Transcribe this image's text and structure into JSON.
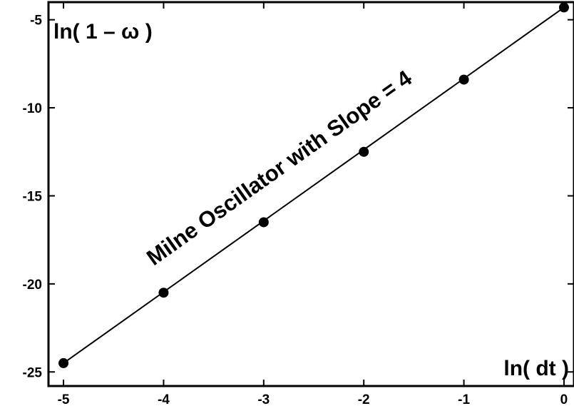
{
  "chart_data": {
    "type": "line",
    "title": "",
    "xlabel": "ln( dt )",
    "ylabel": "ln( 1 – ω )",
    "annotation": "Milne Oscillator with Slope = 4",
    "xlim": [
      -5.15,
      0.1
    ],
    "ylim": [
      -25.8,
      -4.0
    ],
    "xticks": [
      -5,
      -4,
      -3,
      -2,
      -1,
      0
    ],
    "xtick_labels": [
      "-5",
      "-4",
      "-3",
      "-2",
      "-1",
      "0"
    ],
    "yticks": [
      -5,
      -10,
      -15,
      -20,
      -25
    ],
    "ytick_labels": [
      "-5",
      "-10",
      "-15",
      "-20",
      "-25"
    ],
    "grid": false,
    "series": [
      {
        "x": [
          -5,
          -4,
          -3,
          -2,
          -1,
          0
        ],
        "y": [
          -24.5,
          -20.5,
          -16.5,
          -12.5,
          -8.4,
          -4.3
        ],
        "marker": "filled-circle",
        "line": true,
        "color": "#000000"
      }
    ]
  }
}
